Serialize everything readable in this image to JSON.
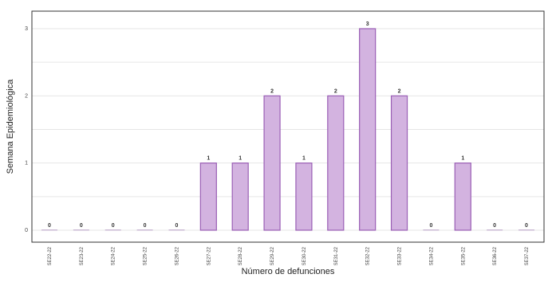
{
  "chart_data": {
    "type": "bar",
    "xlabel": "Número de defunciones",
    "ylabel": "Semana Epidemiológica",
    "categories": [
      "SE22-22",
      "SE23-22",
      "SE24-22",
      "SE25-22",
      "SE26-22",
      "SE27-22",
      "SE28-22",
      "SE29-22",
      "SE30-22",
      "SE31-22",
      "SE32-22",
      "SE33-22",
      "SE34-22",
      "SE35-22",
      "SE36-22",
      "SE37-22"
    ],
    "values": [
      0,
      0,
      0,
      0,
      0,
      1,
      1,
      2,
      1,
      2,
      3,
      2,
      0,
      1,
      0,
      0
    ],
    "data_labels": [
      "0",
      "0",
      "0",
      "0",
      "0",
      "1",
      "1",
      "2",
      "1",
      "2",
      "3",
      "2",
      "0",
      "1",
      "0",
      "0"
    ],
    "ylim": [
      0,
      3
    ],
    "yticks": [
      0,
      1,
      2,
      3
    ],
    "grid": true,
    "legend": "none",
    "colors": {
      "bar_fill": "#d3b3e0",
      "bar_stroke": "#9a5fb5",
      "zero_bar": "#c9b8d3",
      "grid": "#e6e6e6",
      "panel_border": "#333333"
    }
  }
}
